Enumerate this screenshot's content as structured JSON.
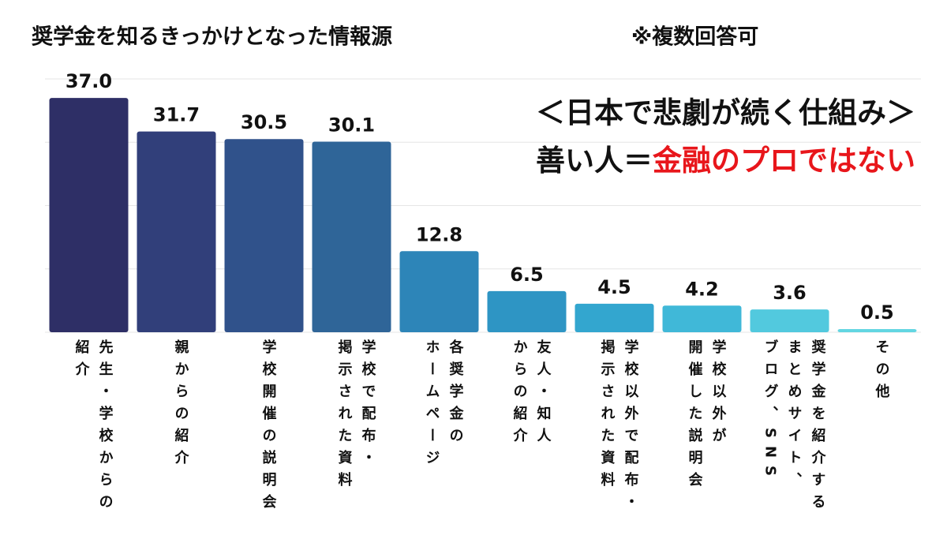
{
  "chart_data": {
    "type": "bar",
    "title": "奨学金を知るきっかけとなった情報源",
    "subtitle": "※複数回答可",
    "annotations": [
      "＜日本で悲劇が続く仕組み＞",
      "善い人＝",
      "金融のプロではない"
    ],
    "categories": [
      "先生・学校からの\n紹介",
      "親からの紹介",
      "学校開催の説明会",
      "学校で配布・\n掲示された資料",
      "各奨学金の\nホームページ",
      "友人・知人\nからの紹介",
      "学校以外で配布・\n掲示された資料",
      "学校以外が\n開催した説明会",
      "奨学金を紹介する\nまとめサイト、\nブログ、SNS",
      "その他"
    ],
    "values": [
      37.0,
      31.7,
      30.5,
      30.1,
      12.8,
      6.5,
      4.5,
      4.2,
      3.6,
      0.5
    ],
    "value_labels": [
      "37.0",
      "31.7",
      "30.5",
      "30.1",
      "12.8",
      "6.5",
      "4.5",
      "4.2",
      "3.6",
      "0.5"
    ],
    "colors": [
      "#2e2f66",
      "#313f7a",
      "#30528b",
      "#2f6598",
      "#2d85b8",
      "#2e95c4",
      "#33a6cf",
      "#40b8d8",
      "#52c9de",
      "#63d6e2"
    ],
    "ylim": [
      0,
      40
    ],
    "yticks": [
      0,
      10,
      20,
      30,
      40
    ],
    "grid": true
  }
}
